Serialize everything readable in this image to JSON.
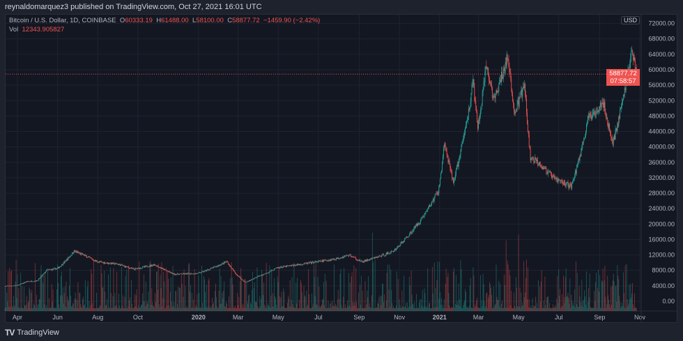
{
  "header": {
    "published": "reynaldomarquez3 published on TradingView.com, Oct 27, 2021 16:01 UTC"
  },
  "legend": {
    "symbol": "Bitcoin / U.S. Dollar, 1D, COINBASE",
    "open_label": "O",
    "open": "60333.19",
    "high_label": "H",
    "high": "61488.00",
    "low_label": "L",
    "low": "58100.00",
    "close_label": "C",
    "close": "58877.72",
    "change": "−1459.90 (−2.42%)",
    "vol_label": "Vol",
    "vol": "12343.905827"
  },
  "price_axis": {
    "currency": "USD",
    "last_price": "58877.72",
    "countdown": "07:58:57"
  },
  "footer": {
    "brand": "TradingView"
  },
  "colors": {
    "up": "#26a69a",
    "down": "#ef5350",
    "background": "#131722",
    "grid": "#1f2330"
  },
  "chart_data": {
    "type": "candlestick",
    "title": "Bitcoin / U.S. Dollar, 1D, COINBASE",
    "ylim": [
      0,
      72000
    ],
    "y_ticks": [
      "72000.00",
      "68000.00",
      "64000.00",
      "60000.00",
      "56000.00",
      "52000.00",
      "48000.00",
      "44000.00",
      "40000.00",
      "36000.00",
      "32000.00",
      "28000.00",
      "24000.00",
      "20000.00",
      "16000.00",
      "12000.00",
      "8000.00",
      "4000.00",
      "0.00"
    ],
    "x_ticks": [
      {
        "label": "Apr",
        "date": "2019-04-01"
      },
      {
        "label": "Jun",
        "date": "2019-06-01"
      },
      {
        "label": "Aug",
        "date": "2019-08-01"
      },
      {
        "label": "Oct",
        "date": "2019-10-01"
      },
      {
        "label": "2020",
        "date": "2020-01-01"
      },
      {
        "label": "Mar",
        "date": "2020-03-01"
      },
      {
        "label": "May",
        "date": "2020-05-01"
      },
      {
        "label": "Jul",
        "date": "2020-07-01"
      },
      {
        "label": "Sep",
        "date": "2020-09-01"
      },
      {
        "label": "Nov",
        "date": "2020-11-01"
      },
      {
        "label": "2021",
        "date": "2021-01-01"
      },
      {
        "label": "Mar",
        "date": "2021-03-01"
      },
      {
        "label": "May",
        "date": "2021-05-01"
      },
      {
        "label": "Jul",
        "date": "2021-07-01"
      },
      {
        "label": "Sep",
        "date": "2021-09-01"
      },
      {
        "label": "Nov",
        "date": "2021-11-01"
      }
    ],
    "approx_close_path": [
      [
        "2019-03-13",
        3900
      ],
      [
        "2019-04-01",
        4100
      ],
      [
        "2019-04-15",
        5100
      ],
      [
        "2019-05-01",
        5300
      ],
      [
        "2019-05-15",
        8000
      ],
      [
        "2019-06-01",
        8500
      ],
      [
        "2019-06-26",
        13000
      ],
      [
        "2019-07-10",
        12000
      ],
      [
        "2019-08-01",
        10200
      ],
      [
        "2019-09-01",
        9600
      ],
      [
        "2019-09-25",
        8300
      ],
      [
        "2019-10-26",
        9500
      ],
      [
        "2019-11-25",
        7000
      ],
      [
        "2019-12-31",
        7200
      ],
      [
        "2020-02-13",
        10300
      ],
      [
        "2020-03-12",
        4900
      ],
      [
        "2020-03-31",
        6400
      ],
      [
        "2020-04-30",
        8700
      ],
      [
        "2020-06-01",
        9500
      ],
      [
        "2020-07-27",
        11000
      ],
      [
        "2020-08-17",
        12000
      ],
      [
        "2020-09-05",
        10200
      ],
      [
        "2020-10-21",
        12800
      ],
      [
        "2020-11-24",
        19000
      ],
      [
        "2020-12-31",
        29000
      ],
      [
        "2021-01-08",
        41000
      ],
      [
        "2021-01-22",
        31000
      ],
      [
        "2021-02-21",
        57000
      ],
      [
        "2021-02-28",
        45000
      ],
      [
        "2021-03-13",
        61000
      ],
      [
        "2021-03-25",
        52000
      ],
      [
        "2021-04-14",
        63500
      ],
      [
        "2021-04-25",
        49000
      ],
      [
        "2021-05-10",
        56000
      ],
      [
        "2021-05-19",
        37000
      ],
      [
        "2021-06-01",
        36000
      ],
      [
        "2021-06-22",
        32000
      ],
      [
        "2021-07-20",
        29800
      ],
      [
        "2021-08-14",
        47000
      ],
      [
        "2021-09-06",
        52000
      ],
      [
        "2021-09-21",
        41000
      ],
      [
        "2021-10-20",
        65000
      ],
      [
        "2021-10-27",
        58877.72
      ]
    ],
    "last_price": 58877.72
  }
}
